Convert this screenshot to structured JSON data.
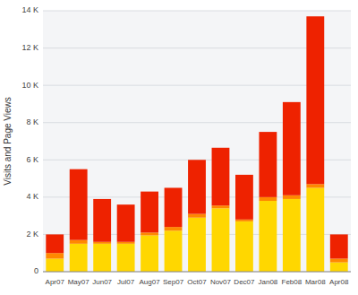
{
  "chart_data": {
    "type": "bar",
    "stacked": true,
    "grid": true,
    "ylabel": "Visits and Page Views",
    "categories": [
      "Apr07",
      "May07",
      "Jun07",
      "Jul07",
      "Aug07",
      "Sep07",
      "Oct07",
      "Nov07",
      "Dec07",
      "Jan08",
      "Feb08",
      "Mar08",
      "Apr08"
    ],
    "series": [
      {
        "color": "#FFD700",
        "values": [
          700,
          1500,
          1500,
          1500,
          1950,
          2200,
          2900,
          3400,
          2700,
          3800,
          3900,
          4500,
          500
        ]
      },
      {
        "color": "#FF8800",
        "values": [
          300,
          200,
          100,
          100,
          150,
          200,
          200,
          150,
          100,
          200,
          200,
          200,
          200
        ]
      },
      {
        "color": "#EE2200",
        "values": [
          1000,
          3800,
          2300,
          2000,
          2200,
          2100,
          2900,
          3100,
          2400,
          3500,
          5000,
          9000,
          1300
        ]
      }
    ],
    "ylim": [
      0,
      14000
    ],
    "yticks": [
      0,
      {
        "value": 2000,
        "label": "2 K"
      },
      {
        "value": 4000,
        "label": "4 K"
      },
      {
        "value": 6000,
        "label": "6 K"
      },
      {
        "value": 8000,
        "label": "8 K"
      },
      {
        "value": 10000,
        "label": "10 K"
      },
      {
        "value": 12000,
        "label": "12 K"
      },
      {
        "value": 14000,
        "label": "14 K"
      }
    ]
  }
}
